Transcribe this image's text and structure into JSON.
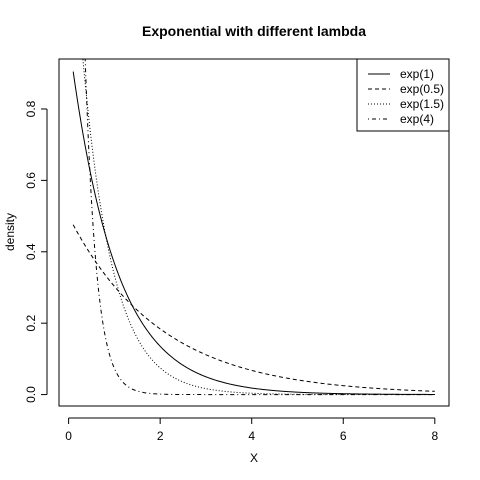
{
  "chart_data": {
    "type": "line",
    "title": "Exponential with different lambda",
    "xlabel": "X",
    "ylabel": "density",
    "xlim": [
      -0.21,
      8.31
    ],
    "ylim": [
      -0.032,
      0.94
    ],
    "x_ticks": [
      0,
      2,
      4,
      6,
      8
    ],
    "y_ticks": [
      0.0,
      0.2,
      0.4,
      0.6,
      0.8
    ],
    "y_tick_labels": [
      "0.0",
      "0.2",
      "0.4",
      "0.6",
      "0.8"
    ],
    "x_range": [
      0.1,
      8
    ],
    "legend_position": "top-right",
    "series": [
      {
        "name": "exp(1)",
        "rate": 1,
        "line_style": "solid"
      },
      {
        "name": "exp(0.5)",
        "rate": 0.5,
        "line_style": "dashed"
      },
      {
        "name": "exp(1.5)",
        "rate": 1.5,
        "line_style": "dotted"
      },
      {
        "name": "exp(4)",
        "rate": 4,
        "line_style": "dotdash"
      }
    ],
    "color": "#000000"
  }
}
